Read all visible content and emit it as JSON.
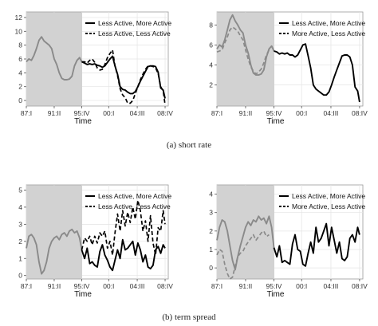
{
  "captions": [
    "(a) short rate",
    "(b) term spread"
  ],
  "chart_data": [
    {
      "type": "line",
      "group": "short rate",
      "xlabel": "Time",
      "x_ticks": [
        "87:I",
        "91:II",
        "95:IV",
        "00:I",
        "04:III",
        "08:IV"
      ],
      "y_ticks": [
        0,
        2,
        4,
        6,
        8,
        10,
        12
      ],
      "ylim": [
        -0.8,
        12.8
      ],
      "xlim": [
        1987.0,
        2009.4
      ],
      "shaded_region": [
        1987.0,
        1995.75
      ],
      "grid": true,
      "legend_position": "top-right",
      "legend": [
        "Less Active, More Active",
        "Less Active, Less Active"
      ],
      "series": [
        {
          "name": "Less Active, More Active",
          "style": "solid",
          "x": [
            1987.0,
            1987.4,
            1987.8,
            1988.2,
            1988.6,
            1989.0,
            1989.4,
            1989.8,
            1990.2,
            1990.6,
            1991.0,
            1991.4,
            1991.8,
            1992.2,
            1992.6,
            1993.0,
            1993.4,
            1993.8,
            1994.2,
            1994.6,
            1995.0,
            1995.4,
            1995.75,
            1996.2,
            1996.6,
            1997.0,
            1997.4,
            1997.8,
            1998.2,
            1998.6,
            1999.0,
            1999.4,
            1999.8,
            2000.2,
            2000.6,
            2001.0,
            2001.4,
            2001.8,
            2002.2,
            2002.6,
            2003.0,
            2003.4,
            2003.8,
            2004.2,
            2004.6,
            2005.0,
            2005.4,
            2005.8,
            2006.2,
            2006.6,
            2007.0,
            2007.4,
            2007.8,
            2008.2,
            2008.6,
            2008.9
          ],
          "y": [
            5.6,
            6.0,
            5.8,
            6.5,
            7.5,
            8.7,
            9.2,
            8.6,
            8.3,
            8.0,
            7.5,
            6.0,
            5.2,
            4.0,
            3.2,
            3.0,
            3.0,
            3.1,
            3.5,
            5.0,
            5.8,
            6.2,
            5.6,
            5.4,
            5.2,
            5.3,
            5.2,
            5.3,
            5.1,
            5.0,
            4.8,
            5.0,
            5.5,
            6.0,
            6.4,
            5.0,
            3.8,
            2.0,
            1.6,
            1.5,
            1.2,
            1.0,
            1.0,
            1.3,
            2.0,
            2.8,
            3.5,
            4.2,
            4.9,
            5.0,
            5.0,
            4.9,
            4.1,
            1.8,
            1.5,
            0.3
          ]
        },
        {
          "name": "Less Active, Less Active",
          "style": "dashed",
          "x": [
            1995.75,
            1996.2,
            1996.6,
            1997.0,
            1997.4,
            1997.8,
            1998.2,
            1998.6,
            1999.0,
            1999.4,
            1999.8,
            2000.2,
            2000.6,
            2001.0,
            2001.4,
            2001.8,
            2002.2,
            2002.6,
            2003.0,
            2003.4,
            2003.8,
            2004.2,
            2004.6,
            2005.0,
            2005.4,
            2005.8,
            2006.2,
            2006.6,
            2007.0,
            2007.4,
            2007.8,
            2008.2,
            2008.6,
            2008.9
          ],
          "y": [
            5.6,
            5.6,
            5.4,
            5.8,
            6.0,
            5.5,
            4.7,
            4.4,
            4.5,
            5.2,
            6.2,
            6.8,
            7.3,
            5.0,
            3.6,
            1.7,
            0.8,
            0.4,
            -0.4,
            -0.4,
            0.0,
            1.0,
            2.0,
            3.0,
            3.8,
            4.5,
            5.0,
            5.0,
            4.9,
            4.7,
            3.9,
            2.0,
            1.4,
            -0.6
          ]
        }
      ]
    },
    {
      "type": "line",
      "group": "short rate",
      "xlabel": "Time",
      "x_ticks": [
        "87:I",
        "91:II",
        "95:IV",
        "00:I",
        "04:III",
        "08:IV"
      ],
      "y_ticks": [
        2,
        4,
        6,
        8
      ],
      "ylim": [
        -0.1,
        9.3
      ],
      "xlim": [
        1987.0,
        2009.4
      ],
      "shaded_region": [
        1987.0,
        1995.75
      ],
      "grid": true,
      "legend_position": "top-right",
      "legend": [
        "Less Active, More Active",
        "More Active, Less Active"
      ],
      "series": [
        {
          "name": "Less Active, More Active",
          "style": "solid",
          "x": [
            1987.0,
            1987.4,
            1987.8,
            1988.2,
            1988.6,
            1989.0,
            1989.4,
            1989.8,
            1990.2,
            1990.6,
            1991.0,
            1991.4,
            1991.8,
            1992.2,
            1992.6,
            1993.0,
            1993.4,
            1993.8,
            1994.2,
            1994.6,
            1995.0,
            1995.4,
            1995.75,
            1996.2,
            1996.6,
            1997.0,
            1997.4,
            1997.8,
            1998.2,
            1998.6,
            1999.0,
            1999.4,
            1999.8,
            2000.2,
            2000.6,
            2001.0,
            2001.4,
            2001.8,
            2002.2,
            2002.6,
            2003.0,
            2003.4,
            2003.8,
            2004.2,
            2004.6,
            2005.0,
            2005.4,
            2005.8,
            2006.2,
            2006.6,
            2007.0,
            2007.4,
            2007.8,
            2008.2,
            2008.6,
            2008.9
          ],
          "y": [
            5.6,
            6.0,
            5.8,
            6.5,
            7.5,
            8.5,
            9.0,
            8.4,
            8.0,
            7.5,
            7.2,
            6.0,
            5.2,
            4.0,
            3.2,
            3.0,
            3.0,
            3.1,
            3.5,
            4.8,
            5.6,
            5.9,
            5.4,
            5.3,
            5.1,
            5.2,
            5.1,
            5.2,
            5.0,
            5.0,
            4.8,
            5.0,
            5.5,
            6.0,
            6.1,
            4.9,
            3.7,
            2.0,
            1.6,
            1.4,
            1.2,
            1.0,
            1.0,
            1.3,
            2.0,
            2.8,
            3.5,
            4.2,
            4.9,
            5.0,
            5.0,
            4.8,
            4.0,
            1.8,
            1.4,
            0.3
          ]
        },
        {
          "name": "More Active, Less Active",
          "style": "dashed",
          "x": [
            1987.0,
            1987.4,
            1987.8,
            1988.2,
            1988.6,
            1989.0,
            1989.4,
            1989.8,
            1990.2,
            1990.6,
            1991.0,
            1991.4,
            1991.8,
            1992.2,
            1992.6,
            1993.0,
            1993.4,
            1993.8,
            1994.2,
            1994.6,
            1995.0
          ],
          "y": [
            5.3,
            5.4,
            5.5,
            6.2,
            6.8,
            7.5,
            7.8,
            7.6,
            7.4,
            6.9,
            6.5,
            5.5,
            4.6,
            3.8,
            3.4,
            3.1,
            3.3,
            3.6,
            4.2,
            5.0,
            5.5
          ]
        }
      ]
    },
    {
      "type": "line",
      "group": "term spread",
      "xlabel": "Time",
      "x_ticks": [
        "87:I",
        "91:II",
        "95:IV",
        "00:I",
        "04:III",
        "08:IV"
      ],
      "y_ticks": [
        0,
        1,
        2,
        3,
        4,
        5
      ],
      "ylim": [
        -0.2,
        5.3
      ],
      "xlim": [
        1987.0,
        2009.4
      ],
      "shaded_region": [
        1987.0,
        1995.75
      ],
      "grid": true,
      "legend_position": "top-right",
      "legend": [
        "Less Active, More Active",
        "Less Active, Less Active"
      ],
      "series": [
        {
          "name": "Less Active, More Active",
          "style": "solid",
          "x": [
            1987.0,
            1987.4,
            1987.8,
            1988.2,
            1988.6,
            1989.0,
            1989.4,
            1989.8,
            1990.2,
            1990.6,
            1991.0,
            1991.4,
            1991.8,
            1992.2,
            1992.6,
            1993.0,
            1993.4,
            1993.8,
            1994.2,
            1994.6,
            1995.0,
            1995.4,
            1995.75,
            1996.2,
            1996.6,
            1997.0,
            1997.4,
            1997.8,
            1998.2,
            1998.6,
            1999.0,
            1999.4,
            1999.8,
            2000.2,
            2000.6,
            2001.0,
            2001.4,
            2001.8,
            2002.2,
            2002.6,
            2003.0,
            2003.4,
            2003.8,
            2004.2,
            2004.6,
            2005.0,
            2005.4,
            2005.8,
            2006.2,
            2006.6,
            2007.0,
            2007.4,
            2007.8,
            2008.2,
            2008.6,
            2008.9
          ],
          "y": [
            1.6,
            2.3,
            2.4,
            2.2,
            1.8,
            0.8,
            0.1,
            0.3,
            0.8,
            1.6,
            2.0,
            2.2,
            2.3,
            2.1,
            2.4,
            2.5,
            2.3,
            2.6,
            2.7,
            2.5,
            2.6,
            2.2,
            1.5,
            1.0,
            1.6,
            0.7,
            0.8,
            0.6,
            0.5,
            1.4,
            1.8,
            1.2,
            0.9,
            0.5,
            0.3,
            0.9,
            1.5,
            1.0,
            2.1,
            1.5,
            1.6,
            1.8,
            2.0,
            1.2,
            1.9,
            1.5,
            0.8,
            1.2,
            0.5,
            0.4,
            0.6,
            1.5,
            1.7,
            1.3,
            1.8,
            1.6
          ]
        },
        {
          "name": "Less Active, Less Active",
          "style": "dashed",
          "x": [
            1995.75,
            1996.2,
            1996.6,
            1997.0,
            1997.4,
            1997.8,
            1998.2,
            1998.6,
            1999.0,
            1999.4,
            1999.8,
            2000.2,
            2000.6,
            2001.0,
            2001.4,
            2001.8,
            2002.2,
            2002.6,
            2003.0,
            2003.4,
            2003.8,
            2004.2,
            2004.6,
            2005.0,
            2005.4,
            2005.8,
            2006.2,
            2006.6,
            2007.0,
            2007.4,
            2007.8,
            2008.2,
            2008.6,
            2008.9
          ],
          "y": [
            1.5,
            2.2,
            2.0,
            2.3,
            1.8,
            2.3,
            1.9,
            2.5,
            2.3,
            2.6,
            1.6,
            2.0,
            1.2,
            2.5,
            3.6,
            2.6,
            3.8,
            2.9,
            3.7,
            3.1,
            4.0,
            3.3,
            4.4,
            3.8,
            2.6,
            3.2,
            2.0,
            3.5,
            1.9,
            1.2,
            2.8,
            2.6,
            3.8,
            3.0
          ]
        }
      ]
    },
    {
      "type": "line",
      "group": "term spread",
      "xlabel": "Time",
      "x_ticks": [
        "87:I",
        "91:II",
        "95:IV",
        "00:I",
        "04:III",
        "08:IV"
      ],
      "y_ticks": [
        0,
        1,
        2,
        3,
        4
      ],
      "ylim": [
        -0.6,
        4.5
      ],
      "xlim": [
        1987.0,
        2009.4
      ],
      "shaded_region": [
        1987.0,
        1995.75
      ],
      "grid": true,
      "legend_position": "top-right",
      "legend": [
        "Less Active, More Active",
        "More Active, Less Active"
      ],
      "series": [
        {
          "name": "Less Active, More Active",
          "style": "solid",
          "x": [
            1987.0,
            1987.4,
            1987.8,
            1988.2,
            1988.6,
            1989.0,
            1989.4,
            1989.8,
            1990.2,
            1990.6,
            1991.0,
            1991.4,
            1991.8,
            1992.2,
            1992.6,
            1993.0,
            1993.4,
            1993.8,
            1994.2,
            1994.6,
            1995.0,
            1995.4,
            1995.75,
            1996.2,
            1996.6,
            1997.0,
            1997.4,
            1997.8,
            1998.2,
            1998.6,
            1999.0,
            1999.4,
            1999.8,
            2000.2,
            2000.6,
            2001.0,
            2001.4,
            2001.8,
            2002.2,
            2002.6,
            2003.0,
            2003.4,
            2003.8,
            2004.2,
            2004.6,
            2005.0,
            2005.4,
            2005.8,
            2006.2,
            2006.6,
            2007.0,
            2007.4,
            2007.8,
            2008.2,
            2008.6,
            2008.9
          ],
          "y": [
            1.5,
            2.2,
            2.6,
            2.5,
            2.0,
            1.2,
            0.4,
            -0.1,
            0.6,
            1.2,
            1.7,
            2.2,
            2.5,
            2.3,
            2.6,
            2.5,
            2.8,
            2.6,
            2.7,
            2.4,
            2.8,
            2.2,
            1.1,
            0.6,
            1.2,
            0.3,
            0.4,
            0.3,
            0.2,
            1.3,
            1.8,
            1.0,
            0.9,
            0.2,
            0.1,
            0.8,
            1.4,
            0.8,
            2.2,
            1.4,
            1.6,
            2.0,
            2.4,
            1.2,
            2.2,
            1.5,
            0.8,
            1.4,
            0.5,
            0.4,
            0.6,
            1.6,
            1.8,
            1.4,
            2.2,
            1.8
          ]
        },
        {
          "name": "More Active, Less Active",
          "style": "dashed",
          "x": [
            1987.0,
            1987.4,
            1987.8,
            1988.2,
            1988.6,
            1989.0,
            1989.4,
            1989.8,
            1990.2,
            1990.6,
            1991.0,
            1991.4,
            1991.8,
            1992.2,
            1992.6,
            1993.0,
            1993.4,
            1993.8,
            1994.2,
            1994.6,
            1995.0
          ],
          "y": [
            0.7,
            1.0,
            0.9,
            0.2,
            -0.3,
            -0.6,
            -0.5,
            0.1,
            0.6,
            0.8,
            0.9,
            1.2,
            1.4,
            1.6,
            1.8,
            1.5,
            1.7,
            1.9,
            2.0,
            1.7,
            1.8
          ]
        }
      ]
    }
  ]
}
